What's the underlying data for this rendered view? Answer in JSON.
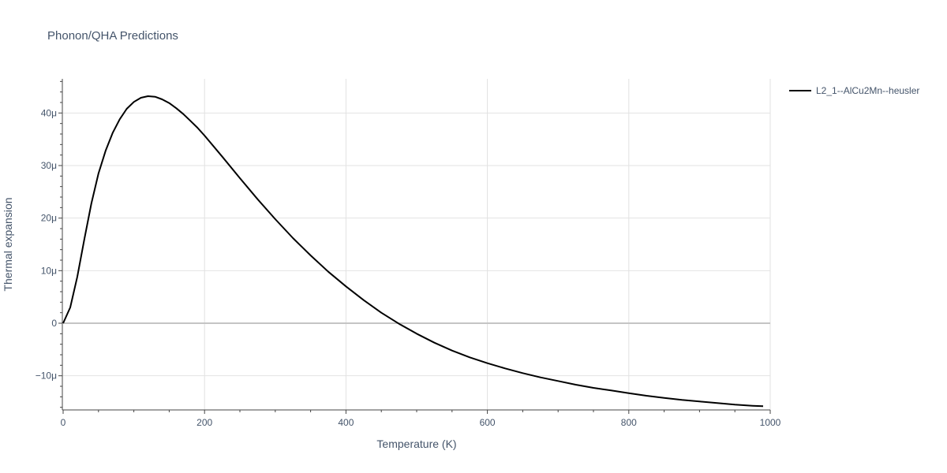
{
  "chart_data": {
    "type": "line",
    "title": "Phonon/QHA Predictions",
    "xlabel": "Temperature (K)",
    "ylabel": "Thermal expansion",
    "xlim": [
      0,
      1000
    ],
    "ylim": [
      -16.5,
      46.5
    ],
    "x_ticks": [
      0,
      200,
      400,
      600,
      800,
      1000
    ],
    "x_tick_labels": [
      "0",
      "200",
      "400",
      "600",
      "800",
      "1000"
    ],
    "y_ticks": [
      -10,
      0,
      10,
      20,
      30,
      40
    ],
    "y_tick_labels": [
      "−10μ",
      "0",
      "10μ",
      "20μ",
      "30μ",
      "40μ"
    ],
    "y_unit": "μ (×1e-6)",
    "grid": true,
    "legend_position": "top-right",
    "series": [
      {
        "name": "L2_1--AlCu2Mn--heusler",
        "color": "#000000",
        "x": [
          0,
          10,
          20,
          30,
          40,
          50,
          60,
          70,
          80,
          90,
          100,
          110,
          120,
          130,
          140,
          150,
          160,
          170,
          180,
          190,
          200,
          225,
          250,
          275,
          300,
          325,
          350,
          375,
          400,
          425,
          450,
          475,
          500,
          525,
          550,
          575,
          600,
          625,
          650,
          675,
          700,
          725,
          750,
          775,
          800,
          825,
          850,
          875,
          900,
          925,
          950,
          975,
          990
        ],
        "y": [
          0,
          3.0,
          8.8,
          16.0,
          22.8,
          28.5,
          32.8,
          36.2,
          38.8,
          40.8,
          42.1,
          42.9,
          43.2,
          43.1,
          42.6,
          41.9,
          40.9,
          39.8,
          38.5,
          37.2,
          35.7,
          31.7,
          27.6,
          23.6,
          19.8,
          16.2,
          12.9,
          9.8,
          7.0,
          4.4,
          2.0,
          -0.1,
          -2.0,
          -3.7,
          -5.2,
          -6.5,
          -7.6,
          -8.6,
          -9.5,
          -10.3,
          -11.0,
          -11.7,
          -12.3,
          -12.8,
          -13.3,
          -13.8,
          -14.2,
          -14.6,
          -14.9,
          -15.2,
          -15.5,
          -15.7,
          -15.8
        ]
      }
    ]
  }
}
